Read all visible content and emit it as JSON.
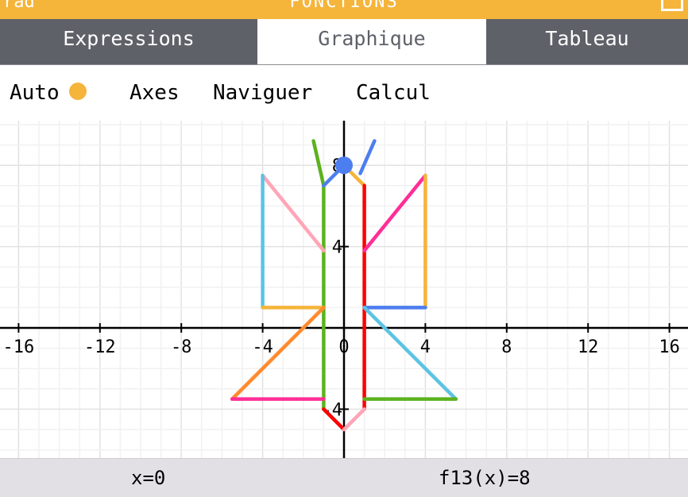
{
  "status_bar": {
    "left_text": "rad",
    "title": "FONCTIONS",
    "battery_icon": "battery-icon"
  },
  "tabs": [
    {
      "label": "Expressions",
      "active": false
    },
    {
      "label": "Graphique",
      "active": true
    },
    {
      "label": "Tableau",
      "active": false
    }
  ],
  "toolbar": {
    "auto": "Auto",
    "axes": "Axes",
    "navigate": "Naviguer",
    "calc": "Calcul"
  },
  "colors": {
    "accent": "#f5b43a",
    "cursor": "#4d7eef"
  },
  "graph": {
    "x_ticks": [
      "-16",
      "-12",
      "-8",
      "-4",
      "0",
      "4",
      "8",
      "12",
      "16"
    ],
    "y_ticks": [
      "8",
      "4",
      "-4"
    ],
    "cursor": {
      "x": 0,
      "y": 8
    },
    "segments": [
      {
        "name": "f-green-left",
        "color": "#5cb21e",
        "points": [
          [
            -1,
            -4
          ],
          [
            -1,
            7
          ]
        ]
      },
      {
        "name": "f-green-top",
        "color": "#5cb21e",
        "points": [
          [
            -1.5,
            9.2
          ],
          [
            -1,
            7
          ]
        ]
      },
      {
        "name": "f-blue-left-wing",
        "color": "#4d7eef",
        "points": [
          [
            -1,
            7
          ],
          [
            -0.2,
            7.8
          ]
        ]
      },
      {
        "name": "f-orange-head",
        "color": "#f5b43a",
        "points": [
          [
            0.2,
            7.8
          ],
          [
            1,
            7
          ]
        ]
      },
      {
        "name": "f-blue-right-antenna",
        "color": "#4d7eef",
        "points": [
          [
            0.8,
            7.6
          ],
          [
            1.5,
            9.2
          ]
        ]
      },
      {
        "name": "f-red-right",
        "color": "#ff0000",
        "points": [
          [
            1,
            -4
          ],
          [
            1,
            7
          ]
        ]
      },
      {
        "name": "f-pink-wing-left",
        "color": "#ffa5b7",
        "points": [
          [
            -4,
            7.5
          ],
          [
            -1,
            3.8
          ]
        ]
      },
      {
        "name": "f-lightblue-wing-left",
        "color": "#5cc3e5",
        "points": [
          [
            -4,
            7.5
          ],
          [
            -4,
            1
          ]
        ]
      },
      {
        "name": "f-orange-bottom-left",
        "color": "#f5b43a",
        "points": [
          [
            -4,
            1
          ],
          [
            -1,
            1
          ]
        ]
      },
      {
        "name": "f-magenta-wing-right",
        "color": "#ff2e98",
        "points": [
          [
            1,
            3.8
          ],
          [
            4,
            7.5
          ]
        ]
      },
      {
        "name": "f-orange-wing-right",
        "color": "#f5b43a",
        "points": [
          [
            4,
            7.5
          ],
          [
            4,
            1
          ]
        ]
      },
      {
        "name": "f-blue-bottom-right",
        "color": "#4d7eef",
        "points": [
          [
            1,
            1
          ],
          [
            4,
            1
          ]
        ]
      },
      {
        "name": "f-orange-lower-left-diag",
        "color": "#ff8a2e",
        "points": [
          [
            -1,
            1
          ],
          [
            -5.5,
            -3.5
          ]
        ]
      },
      {
        "name": "f-magenta-lower-left",
        "color": "#ff2e98",
        "points": [
          [
            -5.5,
            -3.5
          ],
          [
            -1,
            -3.5
          ]
        ]
      },
      {
        "name": "f-lightblue-lower-right-diag",
        "color": "#5cc3e5",
        "points": [
          [
            1,
            1
          ],
          [
            5.5,
            -3.5
          ]
        ]
      },
      {
        "name": "f-green-lower-right",
        "color": "#5cb21e",
        "points": [
          [
            1,
            -3.5
          ],
          [
            5.5,
            -3.5
          ]
        ]
      },
      {
        "name": "f-red-tail-left",
        "color": "#ff0000",
        "points": [
          [
            -1,
            -4
          ],
          [
            0,
            -5
          ]
        ]
      },
      {
        "name": "f-pink-tail-right",
        "color": "#ffa5b7",
        "points": [
          [
            0,
            -5
          ],
          [
            1,
            -4
          ]
        ]
      }
    ]
  },
  "cursor_info": {
    "x_text": "x=0",
    "f_text": "f13(x)=8"
  }
}
